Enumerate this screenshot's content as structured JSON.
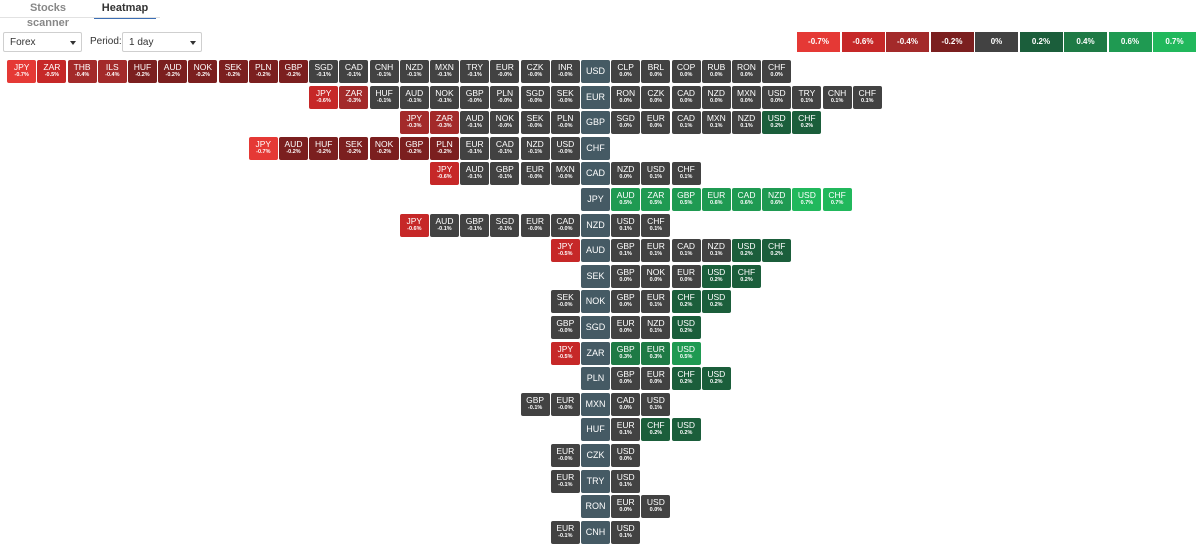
{
  "tabs": [
    {
      "label": "Stocks scanner",
      "active": false
    },
    {
      "label": "Heatmap",
      "active": true
    }
  ],
  "filters": {
    "market": "Forex",
    "period_label": "Period:",
    "period": "1 day"
  },
  "legend": [
    {
      "label": "-0.7%",
      "color": "#e53935"
    },
    {
      "label": "-0.6%",
      "color": "#c62828"
    },
    {
      "label": "-0.4%",
      "color": "#a32a2a"
    },
    {
      "label": "-0.2%",
      "color": "#7b1f1f"
    },
    {
      "label": "0%",
      "color": "#424242"
    },
    {
      "label": "0.2%",
      "color": "#1b5e3b"
    },
    {
      "label": "0.4%",
      "color": "#1e7a45"
    },
    {
      "label": "0.6%",
      "color": "#1f9a52"
    },
    {
      "label": "0.7%",
      "color": "#21b85c"
    }
  ],
  "rows": [
    {
      "base": "USD",
      "left": [
        [
          "JPY",
          "-0.7%"
        ],
        [
          "ZAR",
          "-0.5%"
        ],
        [
          "THB",
          "-0.4%"
        ],
        [
          "ILS",
          "-0.4%"
        ],
        [
          "HUF",
          "-0.2%"
        ],
        [
          "AUD",
          "-0.2%"
        ],
        [
          "NOK",
          "-0.2%"
        ],
        [
          "SEK",
          "-0.2%"
        ],
        [
          "PLN",
          "-0.2%"
        ],
        [
          "GBP",
          "-0.2%"
        ],
        [
          "SGD",
          "-0.1%"
        ],
        [
          "CAD",
          "-0.1%"
        ],
        [
          "CNH",
          "-0.1%"
        ],
        [
          "NZD",
          "-0.1%"
        ],
        [
          "MXN",
          "-0.1%"
        ],
        [
          "TRY",
          "-0.1%"
        ],
        [
          "EUR",
          "-0.0%"
        ],
        [
          "CZK",
          "-0.0%"
        ],
        [
          "INR",
          "-0.0%"
        ]
      ],
      "right": [
        [
          "CLP",
          "0.0%"
        ],
        [
          "BRL",
          "0.0%"
        ],
        [
          "COP",
          "0.0%"
        ],
        [
          "RUB",
          "0.0%"
        ],
        [
          "RON",
          "0.0%"
        ],
        [
          "CHF",
          "0.0%"
        ]
      ]
    },
    {
      "base": "EUR",
      "left": [
        [
          "JPY",
          "-0.6%"
        ],
        [
          "ZAR",
          "-0.3%"
        ],
        [
          "HUF",
          "-0.1%"
        ],
        [
          "AUD",
          "-0.1%"
        ],
        [
          "NOK",
          "-0.1%"
        ],
        [
          "GBP",
          "-0.0%"
        ],
        [
          "PLN",
          "-0.0%"
        ],
        [
          "SGD",
          "-0.0%"
        ],
        [
          "SEK",
          "-0.0%"
        ]
      ],
      "right": [
        [
          "RON",
          "0.0%"
        ],
        [
          "CZK",
          "0.0%"
        ],
        [
          "CAD",
          "0.0%"
        ],
        [
          "NZD",
          "0.0%"
        ],
        [
          "MXN",
          "0.0%"
        ],
        [
          "USD",
          "0.0%"
        ],
        [
          "TRY",
          "0.1%"
        ],
        [
          "CNH",
          "0.1%"
        ],
        [
          "CHF",
          "0.1%"
        ]
      ]
    },
    {
      "base": "GBP",
      "left": [
        [
          "JPY",
          "-0.3%"
        ],
        [
          "ZAR",
          "-0.3%"
        ],
        [
          "AUD",
          "-0.1%"
        ],
        [
          "NOK",
          "-0.0%"
        ],
        [
          "SEK",
          "-0.0%"
        ],
        [
          "PLN",
          "-0.0%"
        ]
      ],
      "right": [
        [
          "SGD",
          "0.0%"
        ],
        [
          "EUR",
          "0.0%"
        ],
        [
          "CAD",
          "0.1%"
        ],
        [
          "MXN",
          "0.1%"
        ],
        [
          "NZD",
          "0.1%"
        ],
        [
          "USD",
          "0.2%"
        ],
        [
          "CHF",
          "0.2%"
        ]
      ]
    },
    {
      "base": "CHF",
      "left": [
        [
          "JPY",
          "-0.7%"
        ],
        [
          "AUD",
          "-0.2%"
        ],
        [
          "HUF",
          "-0.2%"
        ],
        [
          "SEK",
          "-0.2%"
        ],
        [
          "NOK",
          "-0.2%"
        ],
        [
          "GBP",
          "-0.2%"
        ],
        [
          "PLN",
          "-0.2%"
        ],
        [
          "EUR",
          "-0.1%"
        ],
        [
          "CAD",
          "-0.1%"
        ],
        [
          "NZD",
          "-0.1%"
        ],
        [
          "USD",
          "-0.0%"
        ]
      ],
      "right": []
    },
    {
      "base": "CAD",
      "left": [
        [
          "JPY",
          "-0.6%"
        ],
        [
          "AUD",
          "-0.1%"
        ],
        [
          "GBP",
          "-0.1%"
        ],
        [
          "EUR",
          "-0.0%"
        ],
        [
          "MXN",
          "-0.0%"
        ]
      ],
      "right": [
        [
          "NZD",
          "0.0%"
        ],
        [
          "USD",
          "0.1%"
        ],
        [
          "CHF",
          "0.1%"
        ]
      ]
    },
    {
      "base": "JPY",
      "left": [],
      "right": [
        [
          "AUD",
          "0.5%"
        ],
        [
          "ZAR",
          "0.5%"
        ],
        [
          "GBP",
          "0.5%"
        ],
        [
          "EUR",
          "0.6%"
        ],
        [
          "CAD",
          "0.6%"
        ],
        [
          "NZD",
          "0.6%"
        ],
        [
          "USD",
          "0.7%"
        ],
        [
          "CHF",
          "0.7%"
        ]
      ]
    },
    {
      "base": "NZD",
      "left": [
        [
          "JPY",
          "-0.6%"
        ],
        [
          "AUD",
          "-0.1%"
        ],
        [
          "GBP",
          "-0.1%"
        ],
        [
          "SGD",
          "-0.1%"
        ],
        [
          "EUR",
          "-0.0%"
        ],
        [
          "CAD",
          "-0.0%"
        ]
      ],
      "right": [
        [
          "USD",
          "0.1%"
        ],
        [
          "CHF",
          "0.1%"
        ]
      ]
    },
    {
      "base": "AUD",
      "left": [
        [
          "JPY",
          "-0.5%"
        ]
      ],
      "right": [
        [
          "GBP",
          "0.1%"
        ],
        [
          "EUR",
          "0.1%"
        ],
        [
          "CAD",
          "0.1%"
        ],
        [
          "NZD",
          "0.1%"
        ],
        [
          "USD",
          "0.2%"
        ],
        [
          "CHF",
          "0.2%"
        ]
      ]
    },
    {
      "base": "SEK",
      "left": [],
      "right": [
        [
          "GBP",
          "0.0%"
        ],
        [
          "NOK",
          "0.0%"
        ],
        [
          "EUR",
          "0.0%"
        ],
        [
          "USD",
          "0.2%"
        ],
        [
          "CHF",
          "0.2%"
        ]
      ]
    },
    {
      "base": "NOK",
      "left": [
        [
          "SEK",
          "-0.0%"
        ]
      ],
      "right": [
        [
          "GBP",
          "0.0%"
        ],
        [
          "EUR",
          "0.1%"
        ],
        [
          "CHF",
          "0.2%"
        ],
        [
          "USD",
          "0.2%"
        ]
      ]
    },
    {
      "base": "SGD",
      "left": [
        [
          "GBP",
          "-0.0%"
        ]
      ],
      "right": [
        [
          "EUR",
          "0.0%"
        ],
        [
          "NZD",
          "0.1%"
        ],
        [
          "USD",
          "0.2%"
        ]
      ]
    },
    {
      "base": "ZAR",
      "left": [
        [
          "JPY",
          "-0.5%"
        ]
      ],
      "right": [
        [
          "GBP",
          "0.3%"
        ],
        [
          "EUR",
          "0.3%"
        ],
        [
          "USD",
          "0.5%"
        ]
      ]
    },
    {
      "base": "PLN",
      "left": [],
      "right": [
        [
          "GBP",
          "0.0%"
        ],
        [
          "EUR",
          "0.0%"
        ],
        [
          "CHF",
          "0.2%"
        ],
        [
          "USD",
          "0.2%"
        ]
      ]
    },
    {
      "base": "MXN",
      "left": [
        [
          "GBP",
          "-0.1%"
        ],
        [
          "EUR",
          "-0.0%"
        ]
      ],
      "right": [
        [
          "CAD",
          "0.0%"
        ],
        [
          "USD",
          "0.1%"
        ]
      ]
    },
    {
      "base": "HUF",
      "left": [],
      "right": [
        [
          "EUR",
          "0.1%"
        ],
        [
          "CHF",
          "0.2%"
        ],
        [
          "USD",
          "0.2%"
        ]
      ]
    },
    {
      "base": "CZK",
      "left": [
        [
          "EUR",
          "-0.0%"
        ]
      ],
      "right": [
        [
          "USD",
          "0.0%"
        ]
      ]
    },
    {
      "base": "TRY",
      "left": [
        [
          "EUR",
          "-0.1%"
        ]
      ],
      "right": [
        [
          "USD",
          "0.1%"
        ]
      ]
    },
    {
      "base": "RON",
      "left": [],
      "right": [
        [
          "EUR",
          "0.0%"
        ],
        [
          "USD",
          "0.0%"
        ]
      ]
    },
    {
      "base": "CNH",
      "left": [
        [
          "EUR",
          "-0.1%"
        ]
      ],
      "right": [
        [
          "USD",
          "0.1%"
        ]
      ]
    }
  ]
}
